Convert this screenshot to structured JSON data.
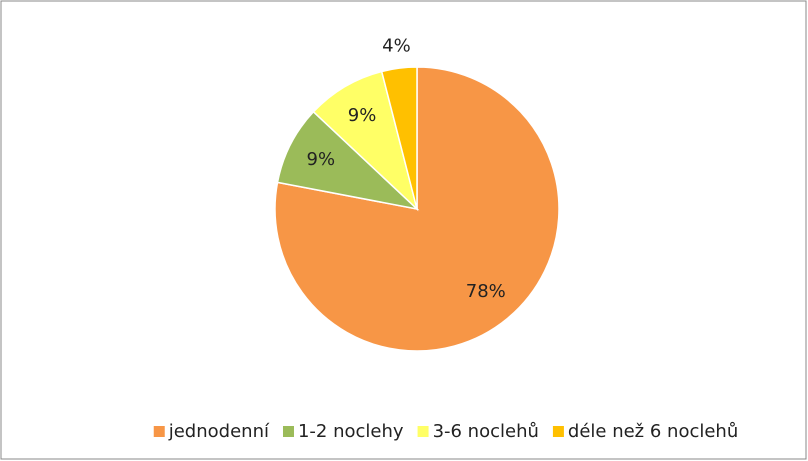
{
  "chart_data": {
    "type": "pie",
    "categories": [
      "jednodenní",
      "1-2 noclehy",
      "3-6 noclehů",
      "déle než 6 noclehů"
    ],
    "values": [
      78,
      9,
      9,
      4
    ],
    "value_labels": [
      "78%",
      "9%",
      "9%",
      "4%"
    ],
    "colors": [
      "#f79646",
      "#9bbb59",
      "#ffff66",
      "#ffc000"
    ],
    "legend": "bottom"
  }
}
